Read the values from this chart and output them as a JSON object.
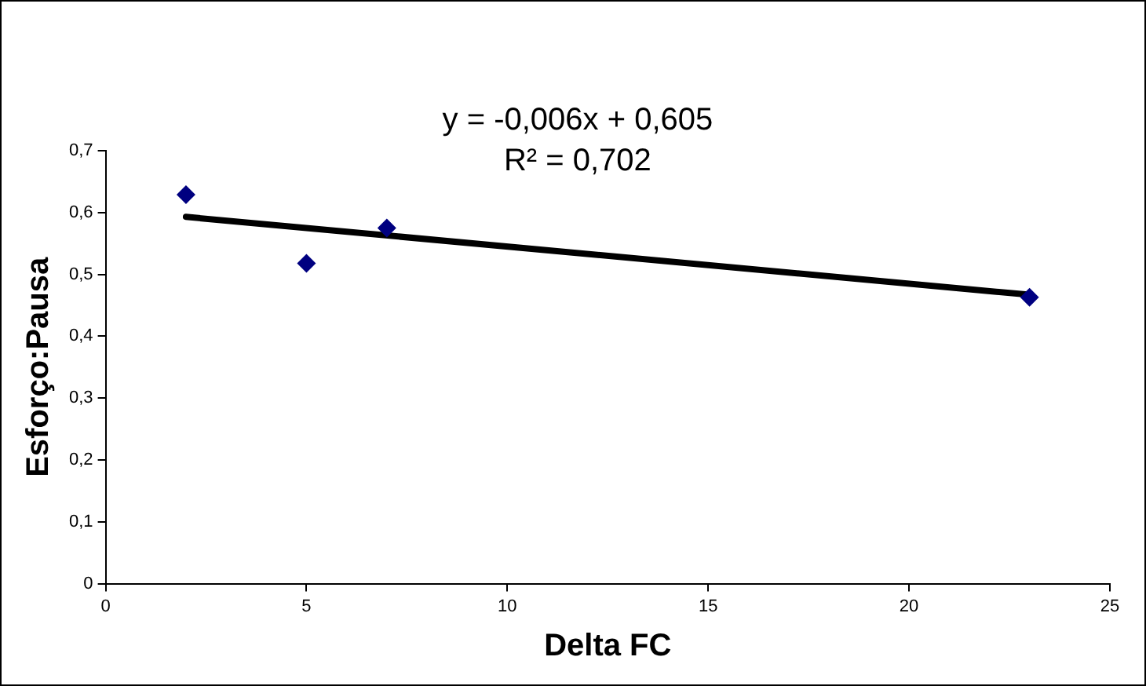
{
  "chart_data": {
    "type": "scatter",
    "xlabel": "Delta FC",
    "ylabel": "Esforço:Pausa",
    "annotations": [
      "y = -0,006x + 0,605",
      "R² = 0,702"
    ],
    "series": [
      {
        "color": "#000080",
        "x": [
          2,
          5,
          7,
          23
        ],
        "values": [
          0.629,
          0.518,
          0.575,
          0.463
        ],
        "marker": "diamond"
      },
      {
        "type": "line",
        "color": "#000000",
        "x": [
          2,
          23
        ],
        "values": [
          0.593,
          0.467
        ],
        "marker": "none"
      }
    ],
    "xlim": [
      0,
      25
    ],
    "xticks": [
      0,
      5,
      10,
      15,
      20,
      25
    ],
    "ylim": [
      0,
      0.7
    ],
    "yticks": [
      {
        "value": 0,
        "label": "0"
      },
      {
        "value": 0.1,
        "label": "0,1"
      },
      {
        "value": 0.2,
        "label": "0,2"
      },
      {
        "value": 0.3,
        "label": "0,3"
      },
      {
        "value": 0.4,
        "label": "0,4"
      },
      {
        "value": 0.5,
        "label": "0,5"
      },
      {
        "value": 0.6,
        "label": "0,6"
      },
      {
        "value": 0.7,
        "label": "0,7"
      }
    ],
    "grid": false,
    "legend": false
  }
}
